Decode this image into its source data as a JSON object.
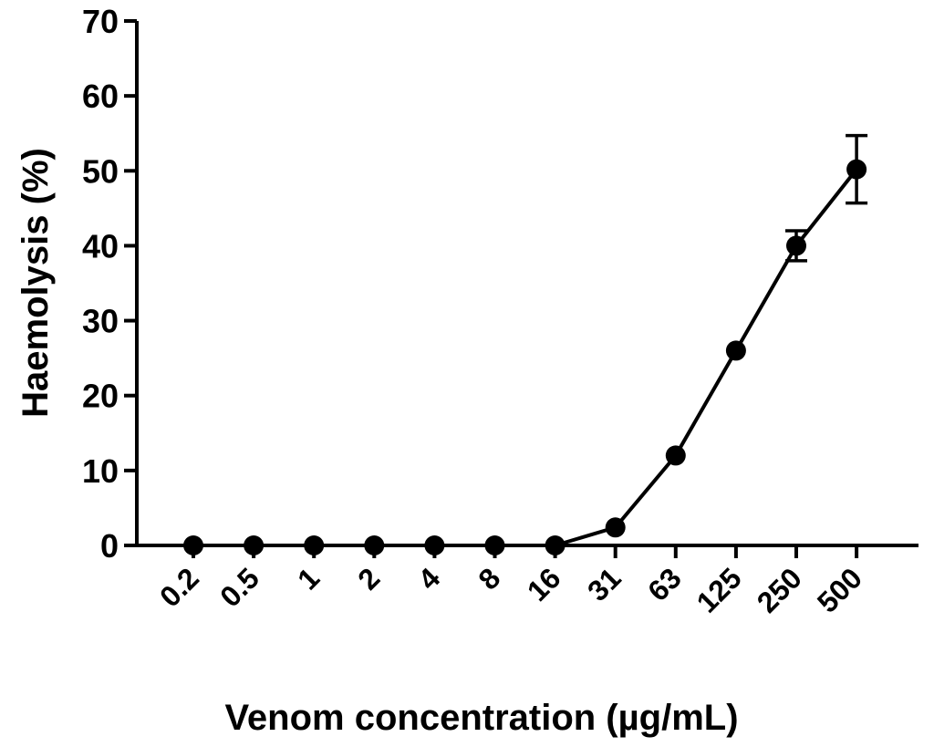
{
  "chart_data": {
    "type": "line",
    "xlabel": "Venom concentration (µg/mL)",
    "ylabel": "Haemolysis (%)",
    "x_scale": "categorical",
    "ylim": [
      0,
      70
    ],
    "yticks": [
      0,
      10,
      20,
      30,
      40,
      50,
      60,
      70
    ],
    "categories": [
      "0.2",
      "0.5",
      "1",
      "2",
      "4",
      "8",
      "16",
      "31",
      "63",
      "125",
      "250",
      "500"
    ],
    "values": [
      0,
      0,
      0,
      0,
      0,
      0,
      0,
      2.4,
      12,
      26,
      40,
      50.2
    ],
    "errors": [
      0,
      0,
      0,
      0,
      0,
      0,
      0,
      0,
      0,
      0,
      2,
      4.5
    ],
    "grid": false,
    "legend": "none",
    "colors": {
      "series": "#000000",
      "axes": "#000000"
    }
  }
}
